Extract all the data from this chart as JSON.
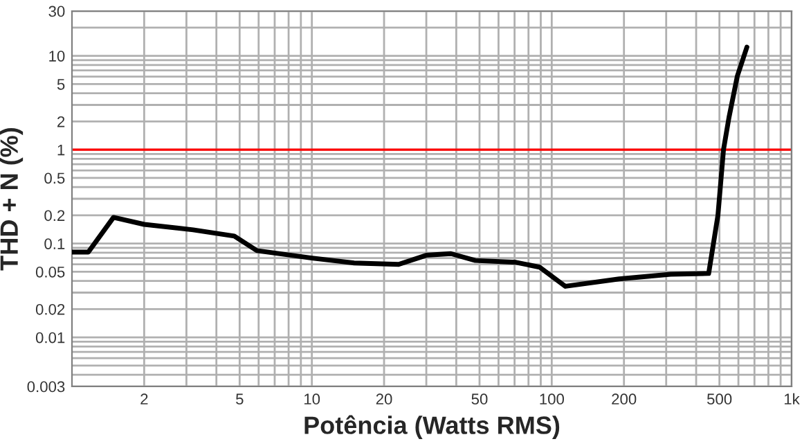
{
  "chart_data": {
    "type": "line",
    "xlabel": "Potência (Watts RMS)",
    "ylabel": "THD + N (%)",
    "log": "xy",
    "grid": true,
    "marker": "none",
    "line_style": "solid",
    "xlim": [
      1,
      1000
    ],
    "ylim": [
      0.003,
      30
    ],
    "xticks": [
      {
        "value": 2,
        "label": "2"
      },
      {
        "value": 3,
        "label": null
      },
      {
        "value": 4,
        "label": null
      },
      {
        "value": 5,
        "label": "5"
      },
      {
        "value": 6,
        "label": null
      },
      {
        "value": 7,
        "label": null
      },
      {
        "value": 8,
        "label": null
      },
      {
        "value": 9,
        "label": null
      },
      {
        "value": 10,
        "label": "10"
      },
      {
        "value": 20,
        "label": "20"
      },
      {
        "value": 30,
        "label": null
      },
      {
        "value": 40,
        "label": null
      },
      {
        "value": 50,
        "label": "50"
      },
      {
        "value": 60,
        "label": null
      },
      {
        "value": 70,
        "label": null
      },
      {
        "value": 80,
        "label": null
      },
      {
        "value": 90,
        "label": null
      },
      {
        "value": 100,
        "label": "100"
      },
      {
        "value": 200,
        "label": "200"
      },
      {
        "value": 300,
        "label": null
      },
      {
        "value": 400,
        "label": null
      },
      {
        "value": 500,
        "label": "500"
      },
      {
        "value": 600,
        "label": null
      },
      {
        "value": 700,
        "label": null
      },
      {
        "value": 800,
        "label": null
      },
      {
        "value": 900,
        "label": null
      },
      {
        "value": 1000,
        "label": "1k"
      }
    ],
    "yticks": [
      {
        "value": 0.003,
        "label": "0.003"
      },
      {
        "value": 0.004,
        "label": null
      },
      {
        "value": 0.005,
        "label": null
      },
      {
        "value": 0.006,
        "label": null
      },
      {
        "value": 0.007,
        "label": null
      },
      {
        "value": 0.008,
        "label": null
      },
      {
        "value": 0.009,
        "label": null
      },
      {
        "value": 0.01,
        "label": "0.01"
      },
      {
        "value": 0.02,
        "label": "0.02"
      },
      {
        "value": 0.03,
        "label": null
      },
      {
        "value": 0.04,
        "label": null
      },
      {
        "value": 0.05,
        "label": "0.05"
      },
      {
        "value": 0.06,
        "label": null
      },
      {
        "value": 0.07,
        "label": null
      },
      {
        "value": 0.08,
        "label": null
      },
      {
        "value": 0.09,
        "label": null
      },
      {
        "value": 0.1,
        "label": "0.1"
      },
      {
        "value": 0.2,
        "label": "0.2"
      },
      {
        "value": 0.3,
        "label": null
      },
      {
        "value": 0.4,
        "label": null
      },
      {
        "value": 0.5,
        "label": "0.5"
      },
      {
        "value": 0.6,
        "label": null
      },
      {
        "value": 0.7,
        "label": null
      },
      {
        "value": 0.8,
        "label": null
      },
      {
        "value": 0.9,
        "label": null
      },
      {
        "value": 1,
        "label": "1"
      },
      {
        "value": 2,
        "label": "2"
      },
      {
        "value": 3,
        "label": null
      },
      {
        "value": 4,
        "label": null
      },
      {
        "value": 5,
        "label": "5"
      },
      {
        "value": 6,
        "label": null
      },
      {
        "value": 7,
        "label": null
      },
      {
        "value": 8,
        "label": null
      },
      {
        "value": 9,
        "label": null
      },
      {
        "value": 10,
        "label": "10"
      },
      {
        "value": 20,
        "label": null
      },
      {
        "value": 30,
        "label": "30"
      }
    ],
    "ref_lines": [
      {
        "axis": "y",
        "value": 1,
        "color": "#ff0000"
      }
    ],
    "series": [
      {
        "color": "#000000",
        "x": [
          1,
          1.17,
          1.49,
          2,
          3.2,
          4.75,
          5.9,
          10,
          15,
          23,
          30,
          38,
          48,
          71,
          89,
          114,
          191,
          313,
          451,
          493,
          520,
          548,
          594,
          651
        ],
        "values": [
          0.081,
          0.081,
          0.19,
          0.16,
          0.14,
          0.12,
          0.084,
          0.07,
          0.062,
          0.06,
          0.075,
          0.078,
          0.066,
          0.063,
          0.056,
          0.035,
          0.042,
          0.047,
          0.048,
          0.2,
          1.0,
          2.2,
          6.1,
          12.4
        ]
      }
    ]
  }
}
